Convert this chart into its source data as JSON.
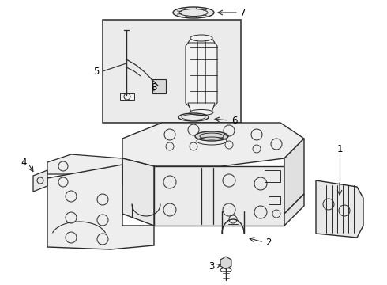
{
  "bg_color": "#ffffff",
  "line_color": "#2a2a2a",
  "fill_light": "#f2f2f2",
  "fill_box": "#ebebeb",
  "fig_width": 4.9,
  "fig_height": 3.6,
  "dpi": 100
}
